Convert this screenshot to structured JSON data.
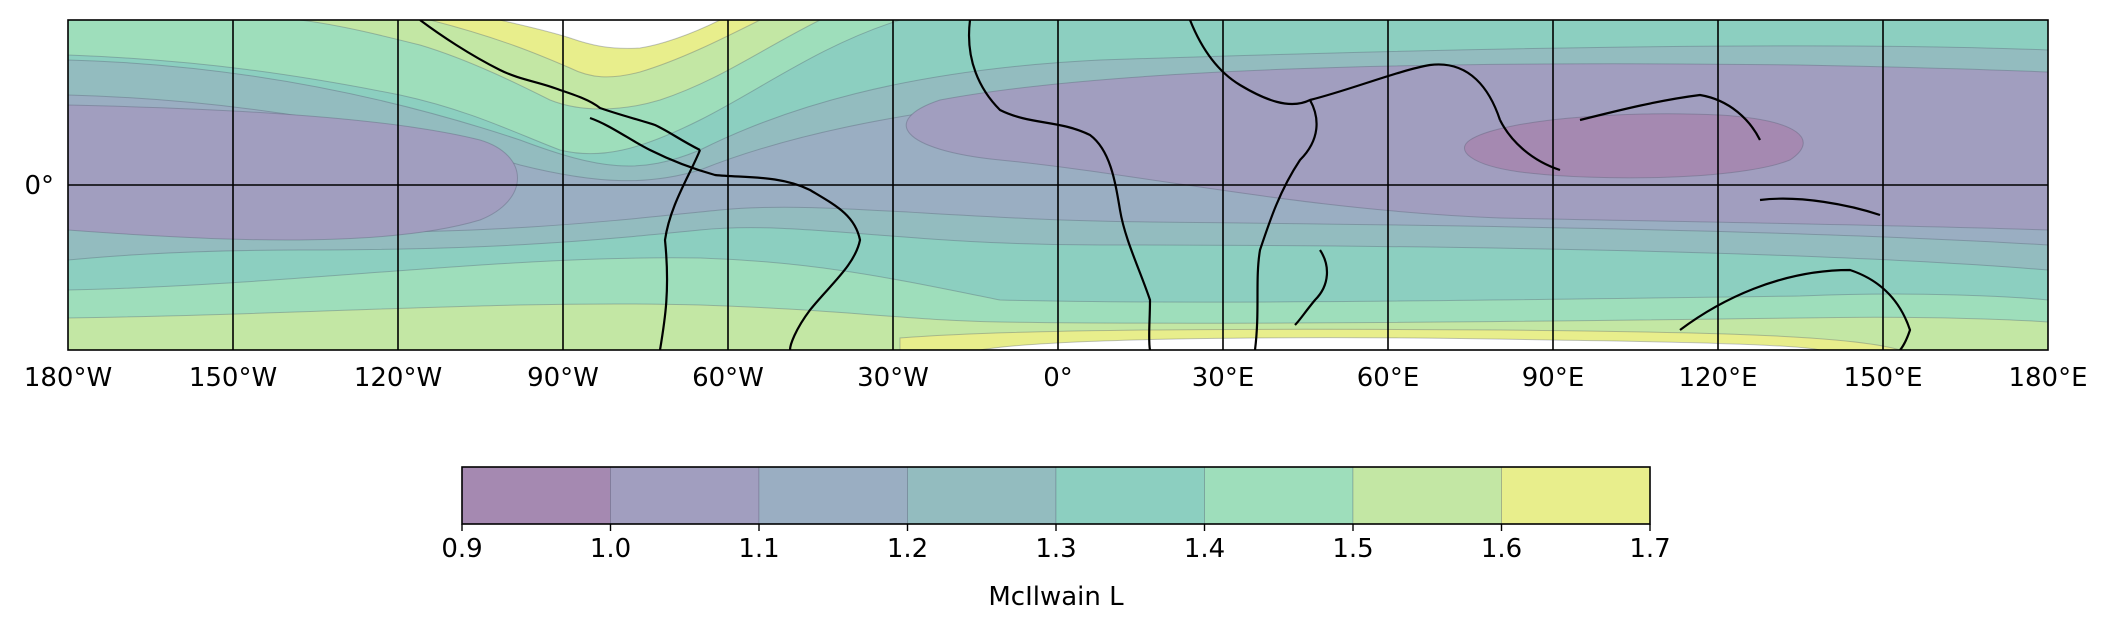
{
  "chart_data": {
    "type": "map",
    "projection": "PlateCarree",
    "extent": {
      "lon": [
        -180,
        180
      ],
      "lat": [
        -30,
        30
      ]
    },
    "grid": true,
    "x_ticks": [
      {
        "value": -180,
        "label": "180°W"
      },
      {
        "value": -150,
        "label": "150°W"
      },
      {
        "value": -120,
        "label": "120°W"
      },
      {
        "value": -90,
        "label": "90°W"
      },
      {
        "value": -60,
        "label": "60°W"
      },
      {
        "value": -30,
        "label": "30°W"
      },
      {
        "value": 0,
        "label": "0°"
      },
      {
        "value": 30,
        "label": "30°E"
      },
      {
        "value": 60,
        "label": "60°E"
      },
      {
        "value": 90,
        "label": "90°E"
      },
      {
        "value": 120,
        "label": "120°E"
      },
      {
        "value": 150,
        "label": "150°E"
      },
      {
        "value": 180,
        "label": "180°E"
      }
    ],
    "y_ticks": [
      {
        "value": 0,
        "label": "0°"
      }
    ],
    "colorbar": {
      "label": "McIlwain L",
      "levels": [
        0.9,
        1.0,
        1.1,
        1.2,
        1.3,
        1.4,
        1.5,
        1.6,
        1.7
      ],
      "tick_labels": [
        "0.9",
        "1.0",
        "1.1",
        "1.2",
        "1.3",
        "1.4",
        "1.5",
        "1.6",
        "1.7"
      ],
      "colors": [
        "#a589b1",
        "#a19ebf",
        "#9aaec2",
        "#93bcbf",
        "#8ccfc0",
        "#9edebb",
        "#c3e7a4",
        "#e8ee8c"
      ],
      "orientation": "horizontal",
      "placement": "bottom"
    },
    "colors": {
      "land_outline": "#000000",
      "gridline": "#000000",
      "missing": "#ffffff"
    }
  }
}
